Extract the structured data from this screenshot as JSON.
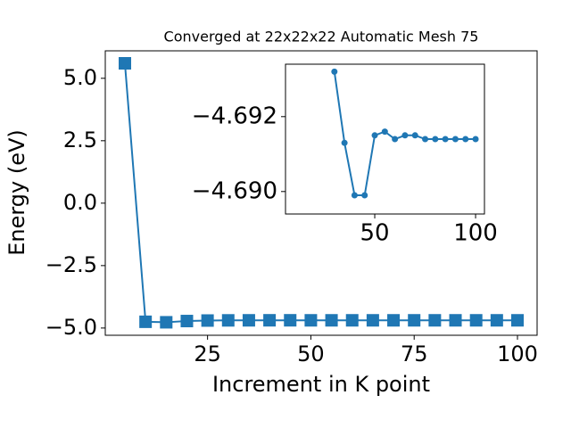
{
  "chart_data": [
    {
      "type": "line",
      "title": "Converged at 22x22x22 Automatic Mesh 75",
      "xlabel": "Increment in K point",
      "ylabel": "Energy (eV)",
      "x": [
        5,
        10,
        15,
        20,
        25,
        30,
        35,
        40,
        45,
        50,
        55,
        60,
        65,
        70,
        75,
        80,
        85,
        90,
        95,
        100
      ],
      "values": [
        5.6,
        -4.75,
        -4.77,
        -4.72,
        -4.7,
        -4.6932,
        -4.6913,
        -4.6899,
        -4.6899,
        -4.6915,
        -4.6916,
        -4.6914,
        -4.6915,
        -4.6915,
        -4.6914,
        -4.6914,
        -4.6914,
        -4.6914,
        -4.6914,
        -4.6914
      ],
      "color": "#1f77b4",
      "marker": "square",
      "xlim": [
        0.25,
        104.75
      ],
      "ylim": [
        -5.29,
        6.1
      ],
      "xticks": [
        25,
        50,
        75,
        100
      ],
      "yticks": [
        {
          "value": 5.0,
          "label": "5.0"
        },
        {
          "value": 2.5,
          "label": "2.5"
        },
        {
          "value": 0.0,
          "label": "0.0"
        },
        {
          "value": -2.5,
          "label": "−2.5"
        },
        {
          "value": -5.0,
          "label": "−5.0"
        }
      ]
    },
    {
      "type": "line",
      "x": [
        30,
        35,
        40,
        45,
        50,
        55,
        60,
        65,
        70,
        75,
        80,
        85,
        90,
        95,
        100
      ],
      "values": [
        -4.6932,
        -4.6913,
        -4.6899,
        -4.6899,
        -4.6915,
        -4.6916,
        -4.6914,
        -4.6915,
        -4.6915,
        -4.6914,
        -4.6914,
        -4.6914,
        -4.6914,
        -4.6914,
        -4.6914
      ],
      "color": "#1f77b4",
      "marker": "circle",
      "xlim": [
        5.75,
        104.4
      ],
      "ylim": [
        -4.6894,
        -4.6934
      ],
      "xticks": [
        50,
        100
      ],
      "yticks": [
        {
          "value": -4.692,
          "label": "−4.692"
        },
        {
          "value": -4.69,
          "label": "−4.690"
        }
      ]
    }
  ]
}
